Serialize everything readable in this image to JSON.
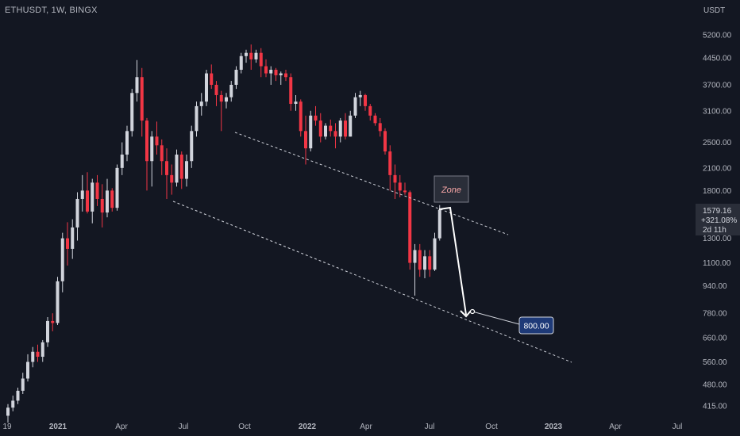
{
  "header": {
    "title": "ETHUSDT, 1W, BINGX"
  },
  "axis": {
    "currency": "USDT"
  },
  "price_label": {
    "price": "1579.16",
    "change": "+321.08%",
    "countdown": "2d 11h"
  },
  "annotations": {
    "zone_label": "Zone",
    "target_label": "800.00"
  },
  "colors": {
    "background": "#131722",
    "up": "#d1d4dc",
    "down": "#f23645",
    "grid": "#2a2e39"
  },
  "chart_data": {
    "type": "candlestick",
    "title": "ETHUSDT, 1W, BINGX",
    "y_scale": "log",
    "y_ticks": [
      415,
      480,
      560,
      660,
      780,
      940,
      1100,
      1300,
      1800,
      2100,
      2500,
      3100,
      3700,
      4450,
      5200
    ],
    "y_tick_labels": [
      "415.00",
      "480.00",
      "560.00",
      "660.00",
      "780.00",
      "940.00",
      "1100.00",
      "1300.00",
      "1800.00",
      "2100.00",
      "2500.00",
      "3100.00",
      "3700.00",
      "4450.00",
      "5200.00"
    ],
    "x_tick_labels": [
      "19",
      "2021",
      "Apr",
      "Jul",
      "Oct",
      "2022",
      "Apr",
      "Jul",
      "Oct",
      "2023",
      "Apr",
      "Jul"
    ],
    "ohlc": [
      [
        388,
        420,
        370,
        410
      ],
      [
        410,
        445,
        400,
        430
      ],
      [
        430,
        470,
        420,
        460
      ],
      [
        460,
        520,
        450,
        500
      ],
      [
        500,
        590,
        490,
        560
      ],
      [
        560,
        620,
        540,
        600
      ],
      [
        600,
        630,
        560,
        580
      ],
      [
        580,
        650,
        560,
        640
      ],
      [
        640,
        760,
        620,
        740
      ],
      [
        740,
        780,
        690,
        730
      ],
      [
        730,
        1000,
        720,
        970
      ],
      [
        970,
        1350,
        900,
        1300
      ],
      [
        1300,
        1450,
        1080,
        1210
      ],
      [
        1210,
        1480,
        1130,
        1400
      ],
      [
        1400,
        1780,
        1280,
        1700
      ],
      [
        1700,
        2000,
        1560,
        1800
      ],
      [
        1800,
        2040,
        1540,
        1560
      ],
      [
        1560,
        1950,
        1440,
        1900
      ],
      [
        1900,
        2000,
        1620,
        1700
      ],
      [
        1700,
        1880,
        1400,
        1550
      ],
      [
        1550,
        1950,
        1500,
        1800
      ],
      [
        1800,
        1830,
        1560,
        1600
      ],
      [
        1600,
        2150,
        1570,
        2100
      ],
      [
        2100,
        2500,
        2000,
        2300
      ],
      [
        2300,
        2800,
        2200,
        2700
      ],
      [
        2700,
        3600,
        2600,
        3500
      ],
      [
        3500,
        4380,
        3300,
        3900
      ],
      [
        3900,
        4150,
        2600,
        2900
      ],
      [
        2900,
        2950,
        1800,
        2200
      ],
      [
        2200,
        2700,
        1850,
        2600
      ],
      [
        2600,
        2880,
        2300,
        2450
      ],
      [
        2450,
        2550,
        2000,
        2200
      ],
      [
        2200,
        2400,
        1700,
        2000
      ],
      [
        2000,
        2150,
        1750,
        1900
      ],
      [
        1900,
        2380,
        1850,
        2300
      ],
      [
        2300,
        2350,
        1820,
        1950
      ],
      [
        1950,
        2300,
        1850,
        2200
      ],
      [
        2200,
        2800,
        2100,
        2700
      ],
      [
        2700,
        3300,
        2600,
        3200
      ],
      [
        3200,
        3500,
        3000,
        3300
      ],
      [
        3300,
        4100,
        3200,
        4000
      ],
      [
        4000,
        4250,
        3600,
        3700
      ],
      [
        3700,
        3800,
        3200,
        3450
      ],
      [
        3450,
        3550,
        2700,
        3300
      ],
      [
        3300,
        3500,
        3150,
        3400
      ],
      [
        3400,
        3800,
        3300,
        3700
      ],
      [
        3700,
        4200,
        3600,
        4100
      ],
      [
        4100,
        4600,
        4000,
        4500
      ],
      [
        4500,
        4700,
        4300,
        4600
      ],
      [
        4600,
        4870,
        4100,
        4400
      ],
      [
        4400,
        4700,
        4300,
        4600
      ],
      [
        4600,
        4750,
        3900,
        4200
      ],
      [
        4200,
        4400,
        3900,
        4000
      ],
      [
        4000,
        4200,
        3700,
        4100
      ],
      [
        4100,
        4150,
        3800,
        3950
      ],
      [
        3950,
        4050,
        3700,
        4000
      ],
      [
        4000,
        4100,
        3800,
        3900
      ],
      [
        3900,
        4000,
        3100,
        3250
      ],
      [
        3250,
        3450,
        3100,
        3300
      ],
      [
        3300,
        3350,
        2600,
        2700
      ],
      [
        2700,
        3000,
        2150,
        2400
      ],
      [
        2400,
        3100,
        2350,
        3000
      ],
      [
        3000,
        3200,
        2800,
        2900
      ],
      [
        2900,
        3050,
        2500,
        2600
      ],
      [
        2600,
        2850,
        2550,
        2800
      ],
      [
        2800,
        2920,
        2600,
        2700
      ],
      [
        2700,
        2850,
        2400,
        2600
      ],
      [
        2600,
        2950,
        2500,
        2900
      ],
      [
        2900,
        3050,
        2550,
        2600
      ],
      [
        2600,
        3100,
        2600,
        3000
      ],
      [
        3000,
        3500,
        2950,
        3400
      ],
      [
        3400,
        3550,
        3200,
        3450
      ],
      [
        3450,
        3480,
        3100,
        3200
      ],
      [
        3200,
        3250,
        2900,
        3000
      ],
      [
        3000,
        3050,
        2800,
        2850
      ],
      [
        2850,
        2950,
        2600,
        2700
      ],
      [
        2700,
        2750,
        2300,
        2350
      ],
      [
        2350,
        2450,
        1800,
        2000
      ],
      [
        2000,
        2150,
        1700,
        1900
      ],
      [
        1900,
        2000,
        1720,
        1800
      ],
      [
        1800,
        1900,
        1750,
        1780
      ],
      [
        1780,
        1800,
        1050,
        1100
      ],
      [
        1100,
        1250,
        880,
        1200
      ],
      [
        1200,
        1250,
        1000,
        1050
      ],
      [
        1050,
        1200,
        990,
        1150
      ],
      [
        1150,
        1200,
        1000,
        1050
      ],
      [
        1050,
        1350,
        1040,
        1300
      ],
      [
        1300,
        1630,
        1280,
        1579
      ]
    ],
    "annotations": [
      {
        "type": "label",
        "text": "Zone"
      },
      {
        "type": "price_target",
        "value": 800,
        "text": "800.00"
      },
      {
        "type": "channel",
        "style": "dashed"
      }
    ]
  }
}
